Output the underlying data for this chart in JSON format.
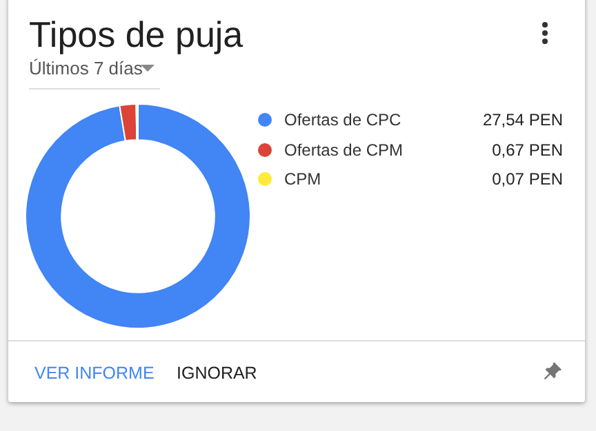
{
  "chart_data": {
    "type": "donut",
    "title": "Tipos de puja",
    "subtitle": "Últimos 7 días",
    "categories": [
      "Ofertas de CPC",
      "Ofertas de CPM",
      "CPM"
    ],
    "values": [
      27.54,
      0.67,
      0.07
    ],
    "value_labels": [
      "27,54 PEN",
      "0,67 PEN",
      "0,07 PEN"
    ],
    "colors": [
      "#4285f4",
      "#db4437",
      "#ffeb3b"
    ],
    "legend": "right",
    "annotations": [
      "VER INFORME",
      "IGNORAR"
    ]
  }
}
